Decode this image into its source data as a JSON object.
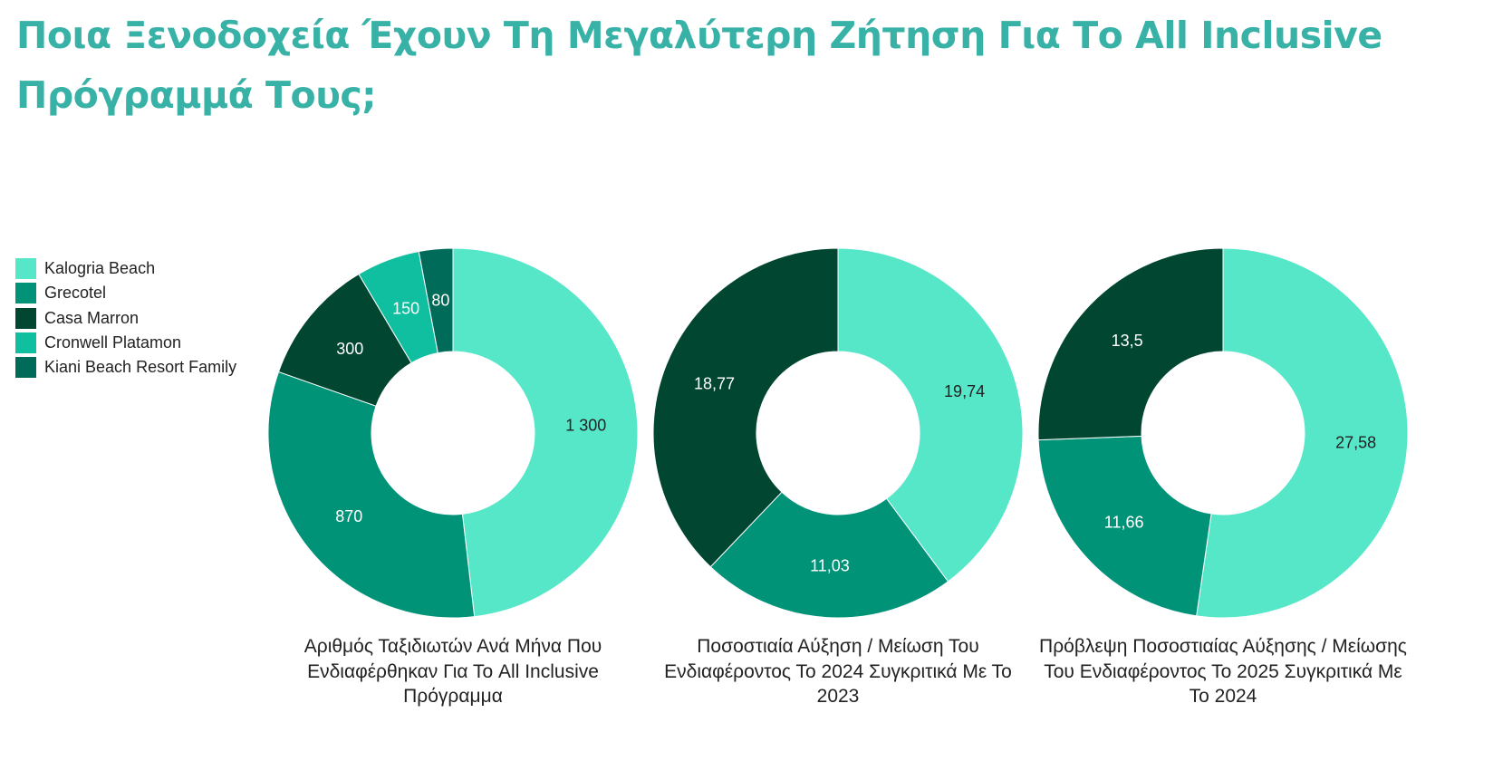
{
  "title": "Ποια Ξενοδοχεία Έχουν Τη Μεγαλύτερη Ζήτηση Για Το All Inclusive Πρόγραμμά Τους;",
  "legend": {
    "placement": "left",
    "items": [
      {
        "label": "Kalogria Beach",
        "color": "#56E6C8"
      },
      {
        "label": "Grecotel",
        "color": "#009378"
      },
      {
        "label": "Casa Marron",
        "color": "#004630"
      },
      {
        "label": "Cronwell Platamon",
        "color": "#10BFA0"
      },
      {
        "label": "Kiani Beach Resort Family",
        "color": "#006B58"
      }
    ]
  },
  "chart_data": [
    {
      "type": "pie",
      "donut": true,
      "title": "Αριθμός Ταξιδιωτών Ανά Μήνα Που Ενδιαφέρθηκαν Για Το All Inclusive Πρόγραμμα",
      "categories": [
        "Kalogria Beach",
        "Grecotel",
        "Casa Marron",
        "Cronwell Platamon",
        "Kiani Beach Resort Family"
      ],
      "values": [
        1300,
        870,
        300,
        150,
        80
      ],
      "labels": [
        "1 300",
        "870",
        "300",
        "150",
        "80"
      ]
    },
    {
      "type": "pie",
      "donut": true,
      "title": "Ποσοστιαία Αύξηση / Μείωση Του Ενδιαφέροντος Το 2024 Συγκριτικά Με Το 2023",
      "categories": [
        "Kalogria Beach",
        "Grecotel",
        "Casa Marron"
      ],
      "values": [
        19.74,
        11.03,
        18.77
      ],
      "labels": [
        "19,74",
        "11,03",
        "18,77"
      ]
    },
    {
      "type": "pie",
      "donut": true,
      "title": "Πρόβλεψη Ποσοστιαίας Αύξησης / Μείωσης Του Ενδιαφέροντος Το 2025 Συγκριτικά Με Το 2024",
      "categories": [
        "Kalogria Beach",
        "Grecotel",
        "Casa Marron"
      ],
      "values": [
        27.58,
        11.66,
        13.5
      ],
      "labels": [
        "27,58",
        "11,66",
        "13,5"
      ]
    }
  ]
}
